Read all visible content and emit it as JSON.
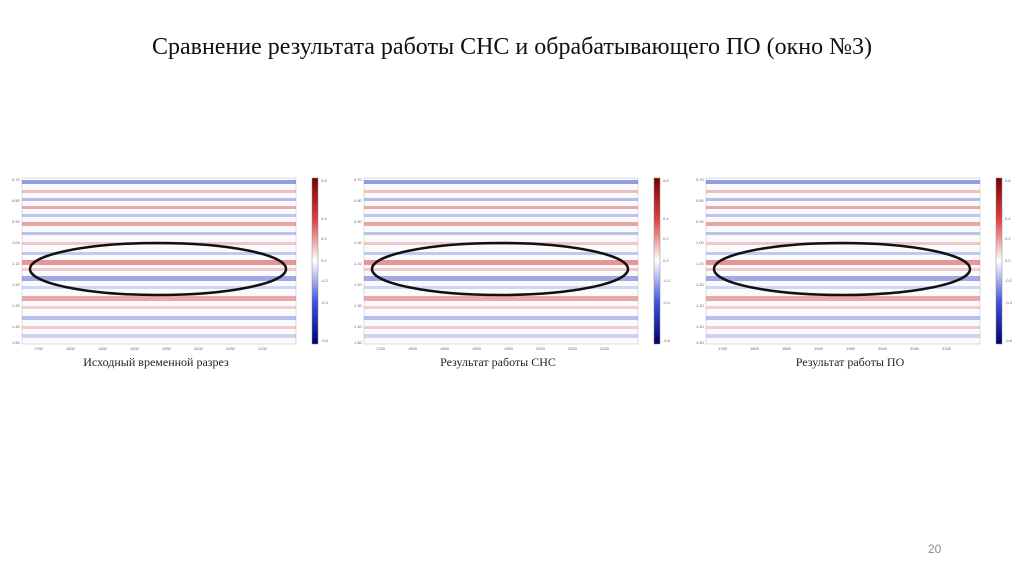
{
  "title": "Сравнение результата работы СНС и обрабатывающего ПО (окно №3)",
  "panels": [
    {
      "caption": "Исходный временной разрез"
    },
    {
      "caption": "Результат работы СНС"
    },
    {
      "caption": "Результат работы ПО"
    }
  ],
  "colormap": {
    "positive": "#cc1f1f",
    "negative": "#1f2fc4",
    "neutral": "#ffffff"
  },
  "page_number": "20"
}
